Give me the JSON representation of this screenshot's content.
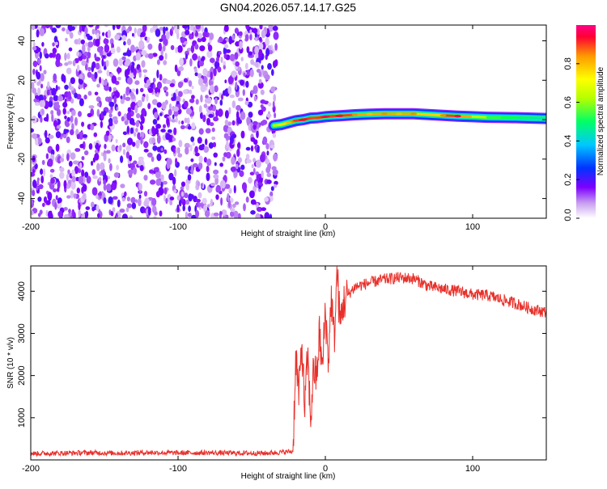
{
  "figure": {
    "title": "GN04.2026.057.14.17.G25"
  },
  "chart_data": [
    {
      "type": "heatmap",
      "title": "",
      "xlabel": "Height of straight line (km)",
      "ylabel": "Frequency (Hz)",
      "xlim": [
        -200,
        150
      ],
      "ylim": [
        -50,
        48
      ],
      "x_ticks": [
        -200,
        -100,
        0,
        100
      ],
      "y_ticks": [
        40,
        20,
        0,
        -20,
        -40
      ],
      "colorbar": {
        "label": "Normalized spectral amplitude",
        "range": [
          0,
          1
        ],
        "ticks": [
          "0.0",
          "0.2",
          "0.4",
          "0.6",
          "0.8"
        ],
        "colormap": [
          "#ffffff",
          "#c79cf0",
          "#7d00ff",
          "#0033ff",
          "#00c8ff",
          "#00ff66",
          "#b4ff00",
          "#ffff00",
          "#ff9900",
          "#ff0033",
          "#ff0088"
        ]
      },
      "noise_region": {
        "x_range": [
          -200,
          -33
        ],
        "description_value": "low amplitude 0.0-0.25 scattered across all frequencies"
      },
      "ridge": {
        "x": [
          -35,
          -30,
          -25,
          -20,
          -15,
          -10,
          -5,
          0,
          5,
          10,
          20,
          30,
          40,
          50,
          60,
          70,
          80,
          90,
          100,
          110,
          120,
          130,
          140,
          150
        ],
        "frequency_hz": [
          -3,
          -2.5,
          -1.5,
          -0.5,
          0,
          0.8,
          1,
          1.5,
          1.8,
          2,
          2.5,
          2.8,
          3,
          3,
          3,
          2.6,
          2.2,
          1.8,
          1.5,
          1.2,
          1.1,
          1.0,
          0.8,
          0.6
        ],
        "amplitude": [
          0.6,
          0.7,
          0.8,
          0.9,
          0.95,
          0.9,
          0.9,
          0.95,
          0.9,
          0.95,
          0.85,
          0.8,
          0.85,
          0.8,
          0.85,
          0.7,
          0.85,
          0.95,
          0.7,
          0.55,
          0.5,
          0.5,
          0.45,
          0.45
        ]
      }
    },
    {
      "type": "line",
      "title": "",
      "xlabel": "Height of straight line (km)",
      "ylabel": "SNR (10 * v/v)",
      "xlim": [
        -200,
        150
      ],
      "ylim": [
        0,
        4600
      ],
      "x_ticks": [
        -200,
        -100,
        0,
        100
      ],
      "y_ticks": [
        1000,
        2000,
        3000,
        4000
      ],
      "series": [
        {
          "name": "SNR",
          "color": "#e8302a",
          "x": [
            -200,
            -180,
            -160,
            -140,
            -120,
            -100,
            -80,
            -60,
            -40,
            -22,
            -20,
            -18,
            -16,
            -14,
            -12,
            -10,
            -8,
            -6,
            -4,
            -2,
            0,
            2,
            4,
            6,
            8,
            10,
            12,
            15,
            20,
            25,
            30,
            40,
            50,
            60,
            70,
            80,
            90,
            100,
            110,
            120,
            130,
            140,
            150
          ],
          "y": [
            150,
            160,
            170,
            160,
            175,
            165,
            170,
            160,
            160,
            200,
            2500,
            1500,
            2800,
            1200,
            2500,
            900,
            2200,
            1900,
            3000,
            2100,
            3600,
            2300,
            3900,
            2800,
            4500,
            3200,
            3700,
            3900,
            4100,
            4150,
            4200,
            4280,
            4320,
            4300,
            4120,
            4050,
            4000,
            3920,
            3900,
            3800,
            3700,
            3580,
            3500
          ]
        }
      ]
    }
  ]
}
